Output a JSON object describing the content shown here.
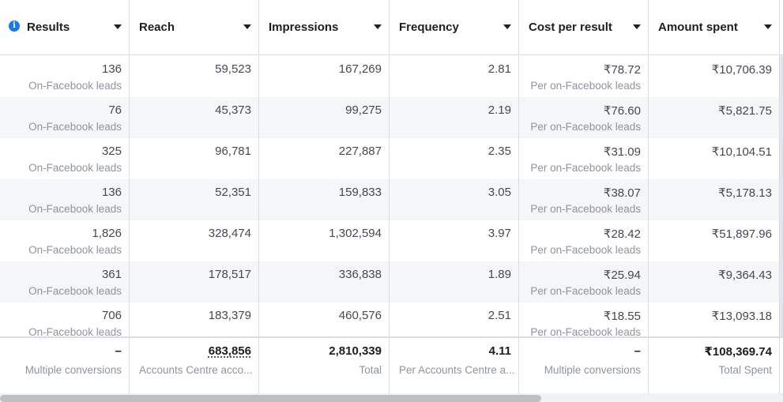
{
  "columns": [
    {
      "label": "Results"
    },
    {
      "label": "Reach"
    },
    {
      "label": "Impressions"
    },
    {
      "label": "Frequency"
    },
    {
      "label": "Cost per result"
    },
    {
      "label": "Amount spent"
    }
  ],
  "rows": [
    {
      "results": "136",
      "results_sub": "On-Facebook leads",
      "reach": "59,523",
      "impressions": "167,269",
      "frequency": "2.81",
      "cost": "₹78.72",
      "cost_sub": "Per on-Facebook leads",
      "spent": "₹10,706.39"
    },
    {
      "results": "76",
      "results_sub": "On-Facebook leads",
      "reach": "45,373",
      "impressions": "99,275",
      "frequency": "2.19",
      "cost": "₹76.60",
      "cost_sub": "Per on-Facebook leads",
      "spent": "₹5,821.75"
    },
    {
      "results": "325",
      "results_sub": "On-Facebook leads",
      "reach": "96,781",
      "impressions": "227,887",
      "frequency": "2.35",
      "cost": "₹31.09",
      "cost_sub": "Per on-Facebook leads",
      "spent": "₹10,104.51"
    },
    {
      "results": "136",
      "results_sub": "On-Facebook leads",
      "reach": "52,351",
      "impressions": "159,833",
      "frequency": "3.05",
      "cost": "₹38.07",
      "cost_sub": "Per on-Facebook leads",
      "spent": "₹5,178.13"
    },
    {
      "results": "1,826",
      "results_sub": "On-Facebook leads",
      "reach": "328,474",
      "impressions": "1,302,594",
      "frequency": "3.97",
      "cost": "₹28.42",
      "cost_sub": "Per on-Facebook leads",
      "spent": "₹51,897.96"
    },
    {
      "results": "361",
      "results_sub": "On-Facebook leads",
      "reach": "178,517",
      "impressions": "336,838",
      "frequency": "1.89",
      "cost": "₹25.94",
      "cost_sub": "Per on-Facebook leads",
      "spent": "₹9,364.43"
    },
    {
      "results": "706",
      "results_sub": "On-Facebook leads",
      "reach": "183,379",
      "impressions": "460,576",
      "frequency": "2.51",
      "cost": "₹18.55",
      "cost_sub": "Per on-Facebook leads",
      "spent": "₹13,093.18"
    }
  ],
  "totals": {
    "results": "–",
    "results_sub": "Multiple conversions",
    "reach": "683,856",
    "reach_sub": "Accounts Centre acco...",
    "impressions": "2,810,339",
    "impressions_sub": "Total",
    "frequency": "4.11",
    "frequency_sub": "Per Accounts Centre a...",
    "cost": "–",
    "cost_sub": "Multiple conversions",
    "spent": "₹108,369.74",
    "spent_sub": "Total Spent"
  },
  "icons": {
    "info": "info-icon",
    "sort": "caret-down-icon"
  },
  "colors": {
    "info_icon": "#1877f2",
    "alt_row": "#f5f6f7"
  }
}
